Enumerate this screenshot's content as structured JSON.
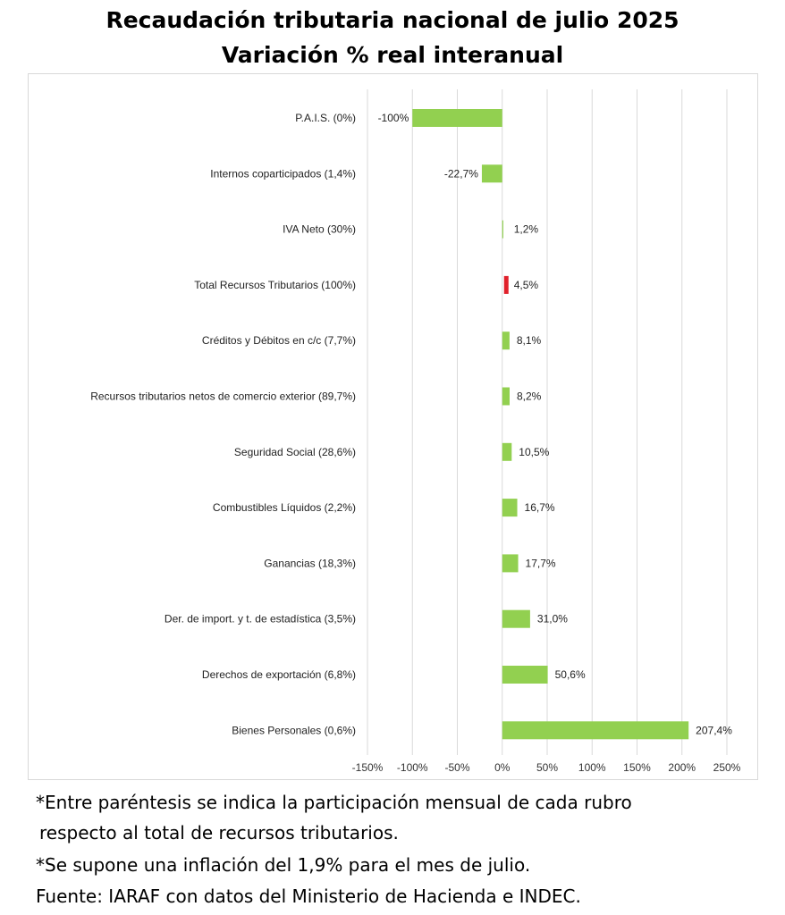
{
  "title_line1": "Recaudación tributaria nacional de julio 2025",
  "title_line2": "Variación % real interanual",
  "notes": {
    "line1": "*Entre paréntesis se indica la participación mensual de cada rubro",
    "line2": "respecto al total de recursos tributarios.",
    "line3": "*Se supone una inflación del 1,9% para el mes de julio.",
    "line4": "Fuente: IARAF con datos del Ministerio de Hacienda e INDEC."
  },
  "colors": {
    "bar": "#92d050",
    "highlight": "#e0202a",
    "grid": "#d9d9d9"
  },
  "chart_data": {
    "type": "bar",
    "orientation": "horizontal",
    "title": "Recaudación tributaria nacional de julio 2025",
    "subtitle": "Variación % real interanual",
    "xlim": [
      -150,
      250
    ],
    "x_ticks": [
      "-150%",
      "-100%",
      "-50%",
      "0%",
      "50%",
      "100%",
      "150%",
      "200%",
      "250%"
    ],
    "x_tick_values": [
      -150,
      -100,
      -50,
      0,
      50,
      100,
      150,
      200,
      250
    ],
    "grid": true,
    "categories": [
      "P.A.I.S. (0%)",
      "Internos coparticipados (1,4%)",
      "IVA Neto (30%)",
      "Total Recursos Tributarios (100%)",
      "Créditos y Débitos en c/c (7,7%)",
      "Recursos tributarios netos de comercio exterior (89,7%)",
      "Seguridad Social (28,6%)",
      "Combustibles Líquidos (2,2%)",
      "Ganancias (18,3%)",
      "Der. de import. y t. de estadística (3,5%)",
      "Derechos de exportación (6,8%)",
      "Bienes Personales (0,6%)"
    ],
    "values": [
      -100,
      -22.7,
      1.2,
      4.5,
      8.1,
      8.2,
      10.5,
      16.7,
      17.7,
      31.0,
      50.6,
      207.4
    ],
    "data_labels": [
      "-100%",
      "-22,7%",
      "1,2%",
      "4,5%",
      "8,1%",
      "8,2%",
      "10,5%",
      "16,7%",
      "17,7%",
      "31,0%",
      "50,6%",
      "207,4%"
    ],
    "highlight_index": 3
  }
}
